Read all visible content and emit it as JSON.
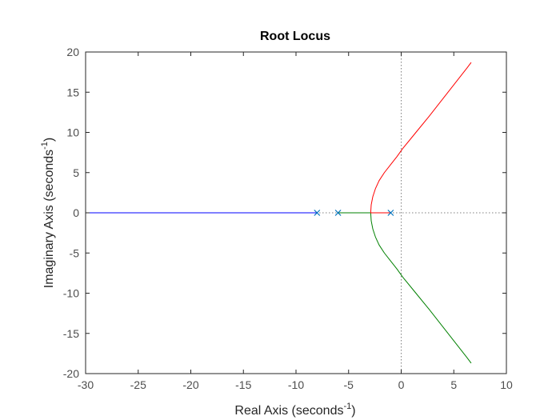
{
  "chart_data": {
    "type": "line",
    "title": "Root Locus",
    "xlabel": {
      "main": "Real Axis (seconds",
      "sup": "-1",
      "end": ")"
    },
    "ylabel": {
      "main": "Imaginary Axis (seconds",
      "sup": "-1",
      "end": ")"
    },
    "xlim": [
      -30,
      10
    ],
    "ylim": [
      -20,
      20
    ],
    "xticks": [
      -30,
      -25,
      -20,
      -15,
      -10,
      -5,
      0,
      5,
      10
    ],
    "yticks": [
      -20,
      -15,
      -10,
      -5,
      0,
      5,
      10,
      15,
      20
    ],
    "grid": false,
    "axis_reference_lines": "dotted lines at x=0 and y=0",
    "poles": [
      {
        "x": -1,
        "y": 0
      },
      {
        "x": -6,
        "y": 0
      },
      {
        "x": -8,
        "y": 0
      }
    ],
    "series": [
      {
        "color": "#0000ff",
        "points": [
          [
            -8,
            0
          ],
          [
            -30,
            0
          ]
        ]
      },
      {
        "color": "#008000",
        "points": [
          [
            -6,
            0
          ],
          [
            -2.9,
            0
          ],
          [
            -2.85,
            -1
          ],
          [
            -2.7,
            -2
          ],
          [
            -2.45,
            -3
          ],
          [
            -2.1,
            -4
          ],
          [
            -1.6,
            -5
          ],
          [
            -1.0,
            -6
          ],
          [
            -0.4,
            -7
          ],
          [
            0.15,
            -8
          ],
          [
            1.4,
            -10
          ],
          [
            2.65,
            -12
          ],
          [
            3.85,
            -14
          ],
          [
            5.05,
            -16
          ],
          [
            6.25,
            -18
          ],
          [
            6.65,
            -18.7
          ]
        ]
      },
      {
        "color": "#ff0000",
        "points": [
          [
            -1,
            0
          ],
          [
            -2.9,
            0
          ],
          [
            -2.85,
            1
          ],
          [
            -2.7,
            2
          ],
          [
            -2.45,
            3
          ],
          [
            -2.1,
            4
          ],
          [
            -1.6,
            5
          ],
          [
            -1.0,
            6
          ],
          [
            -0.4,
            7
          ],
          [
            0.15,
            8
          ],
          [
            1.4,
            10
          ],
          [
            2.65,
            12
          ],
          [
            3.85,
            14
          ],
          [
            5.05,
            16
          ],
          [
            6.25,
            18
          ],
          [
            6.65,
            18.7
          ]
        ]
      }
    ],
    "colors": {
      "axes": "#262626",
      "ticks": "#4d4d4d",
      "reference_lines": "#808080",
      "pole_marker": "#0072bd"
    }
  }
}
